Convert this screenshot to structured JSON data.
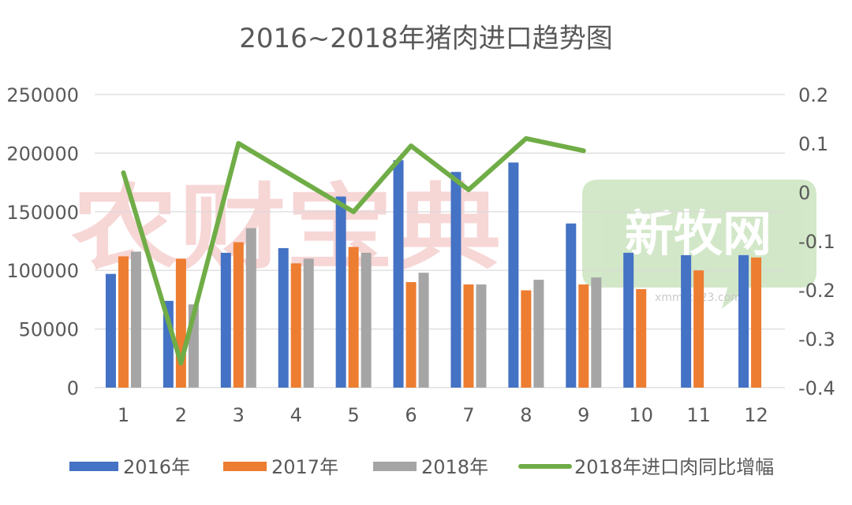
{
  "chart_data": {
    "type": "bar",
    "title": "2016~2018年猪肉进口趋势图",
    "categories": [
      "1",
      "2",
      "3",
      "4",
      "5",
      "6",
      "7",
      "8",
      "9",
      "10",
      "11",
      "12"
    ],
    "y_left": {
      "ylim": [
        0,
        250000
      ],
      "ticks": [
        "250000",
        "200000",
        "150000",
        "100000",
        "50000",
        "0"
      ]
    },
    "y_right": {
      "ylim": [
        -0.4,
        0.2
      ],
      "ticks": [
        "0.2",
        "0.1",
        "0",
        "-0.1",
        "-0.2",
        "-0.3",
        "-0.4"
      ]
    },
    "series": [
      {
        "name": "2016年",
        "kind": "bar",
        "axis": "left",
        "color": "#4472C4",
        "values": [
          97000,
          74000,
          115000,
          119000,
          163000,
          194000,
          184000,
          192000,
          140000,
          115000,
          113000,
          113000
        ]
      },
      {
        "name": "2017年",
        "kind": "bar",
        "axis": "left",
        "color": "#ED7D31",
        "values": [
          112000,
          110000,
          124000,
          106000,
          120000,
          90000,
          88000,
          83000,
          88000,
          84000,
          100000,
          111000
        ]
      },
      {
        "name": "2018年",
        "kind": "bar",
        "axis": "left",
        "color": "#A5A5A5",
        "values": [
          116000,
          71000,
          136000,
          110000,
          115000,
          98000,
          88000,
          92000,
          94000,
          null,
          null,
          null
        ]
      },
      {
        "name": "2018年进口肉同比增幅",
        "kind": "line",
        "axis": "right",
        "color": "#70AD47",
        "values": [
          0.04,
          -0.35,
          0.1,
          0.03,
          -0.04,
          0.095,
          0.005,
          0.11,
          0.085,
          null,
          null,
          null
        ]
      }
    ],
    "grid": true,
    "legend_position": "bottom"
  },
  "watermarks": {
    "left": "农财宝典",
    "right": "新牧网",
    "right_url": "xmmtc123.com"
  }
}
